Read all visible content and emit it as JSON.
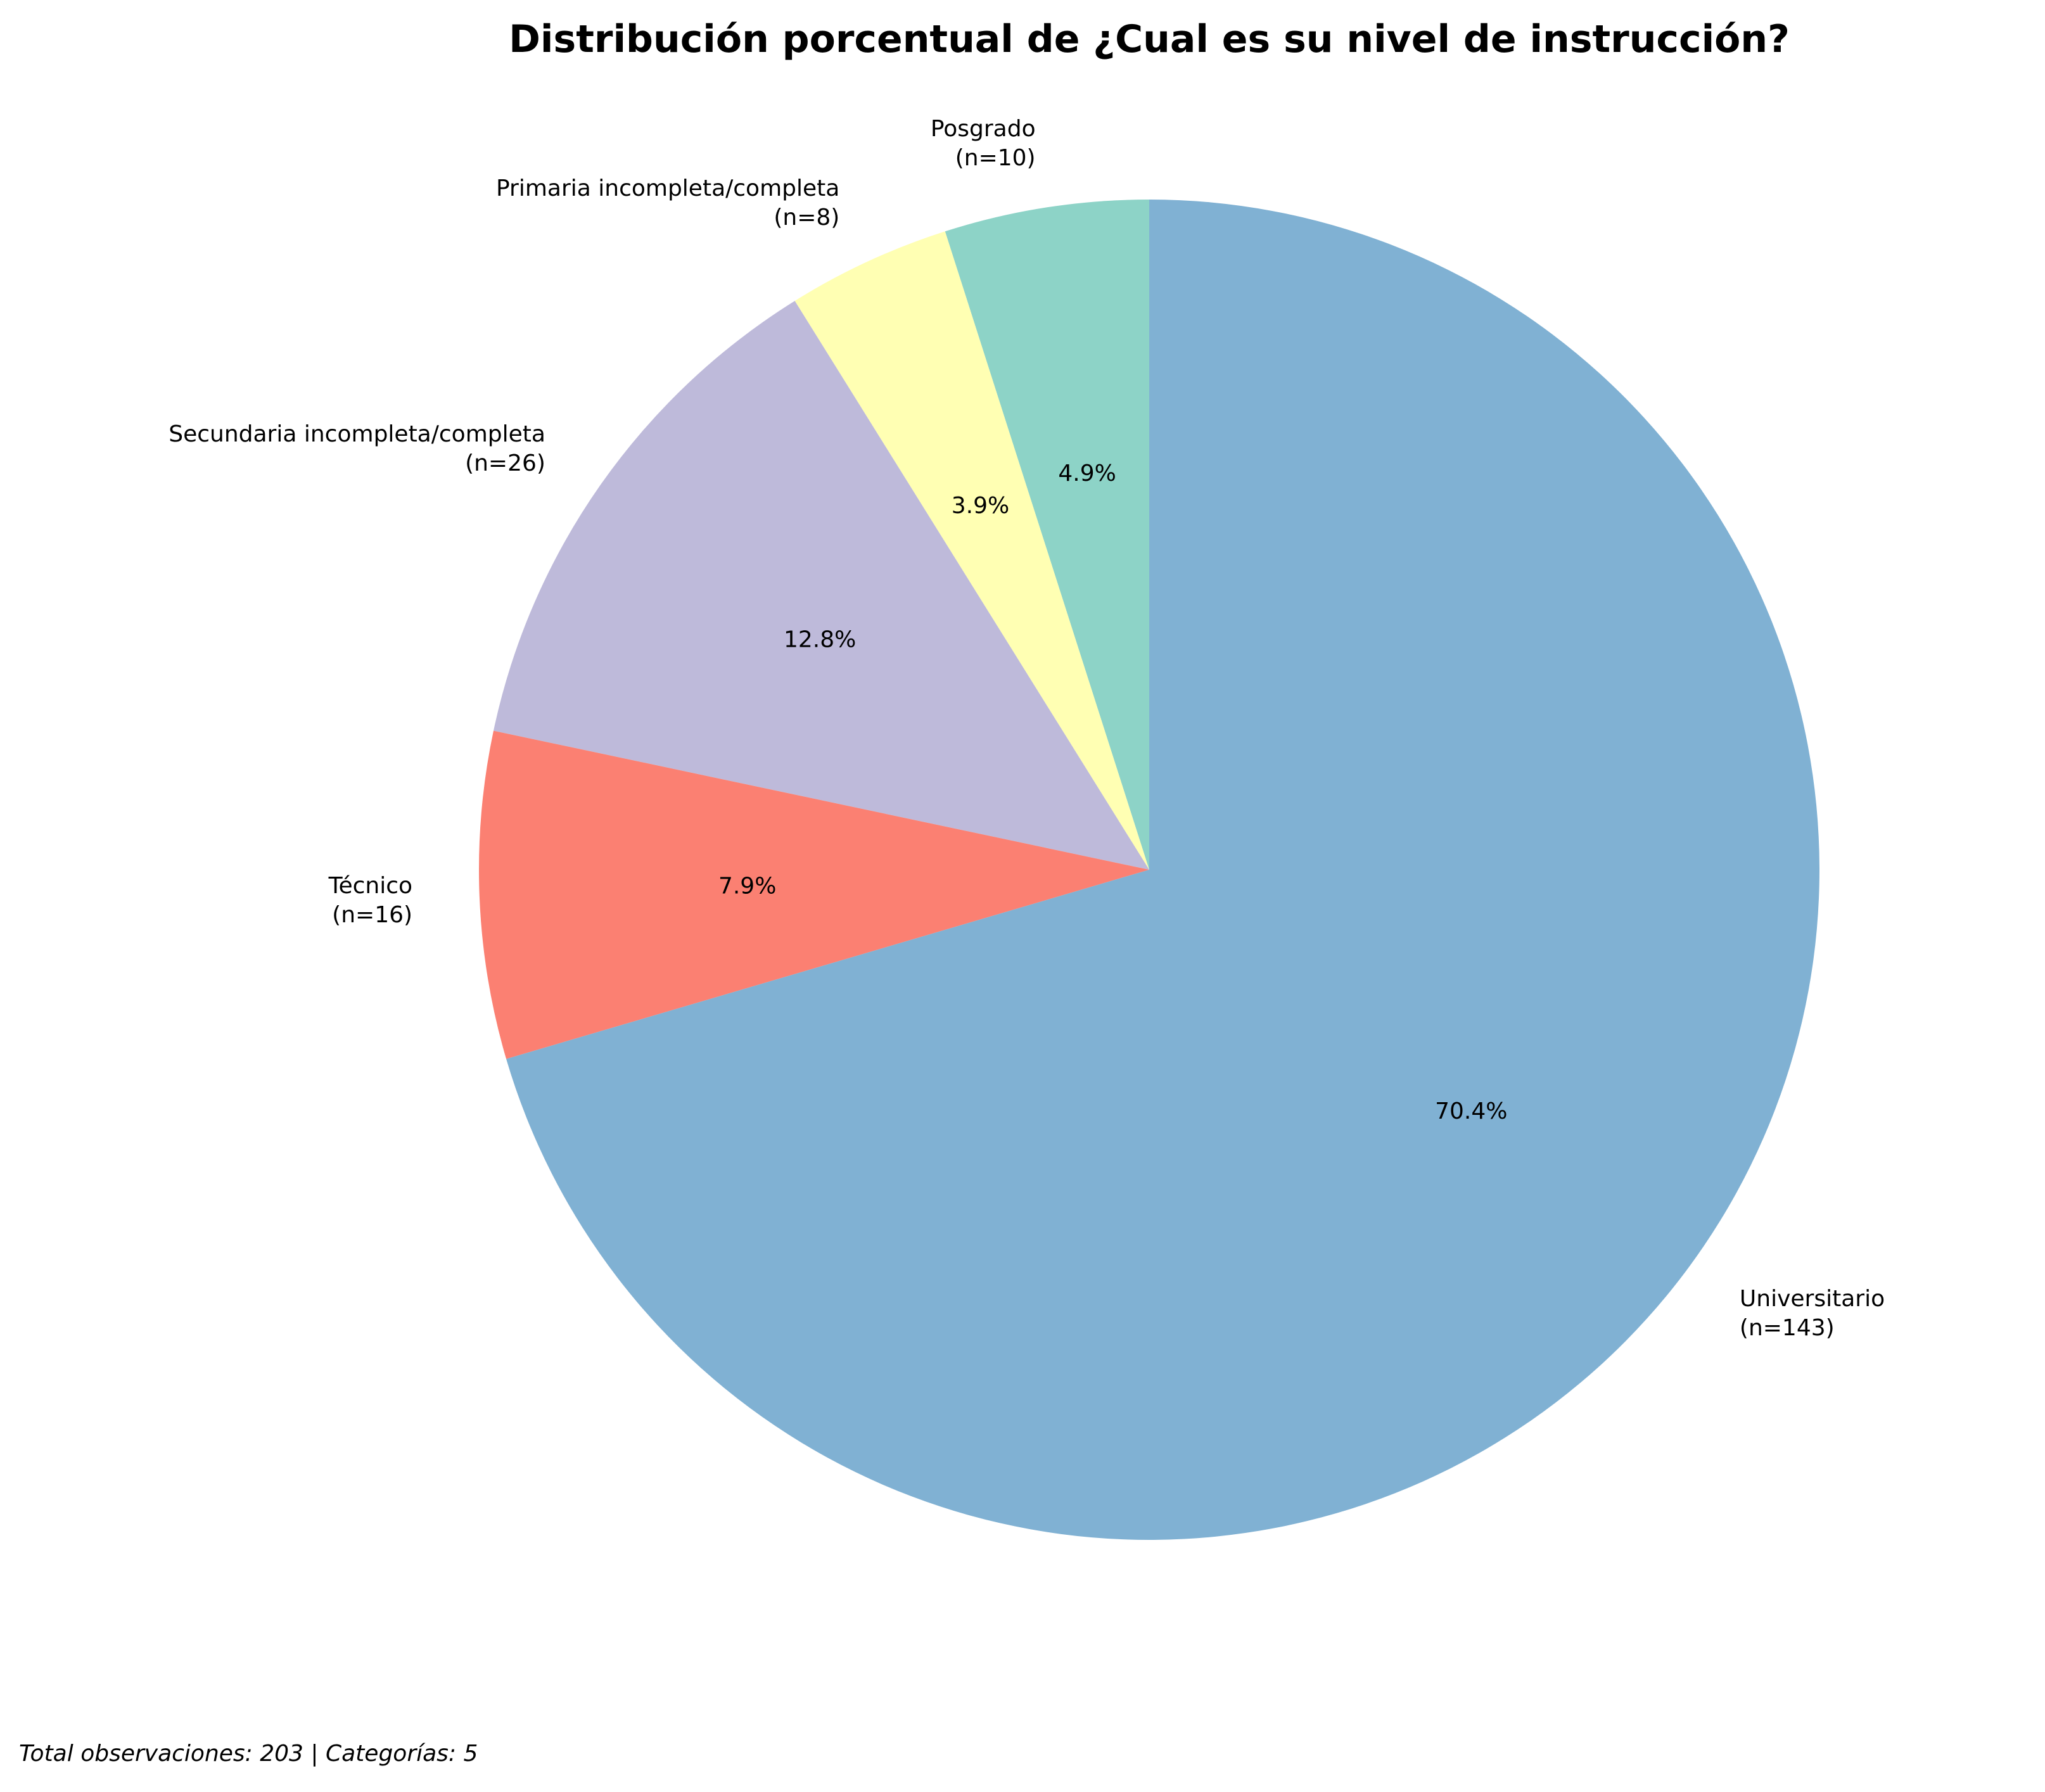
{
  "chart_data": {
    "type": "pie",
    "title": "Distribución porcentual de ¿Cual es su nivel de instrucción?",
    "slices": [
      {
        "label": "Posgrado",
        "count_label": "(n=10)",
        "value": 10,
        "pct_label": "4.9%",
        "color": "#8dd3c7"
      },
      {
        "label": "Primaria incompleta/completa",
        "count_label": "(n=8)",
        "value": 8,
        "pct_label": "3.9%",
        "color": "#ffffb3"
      },
      {
        "label": "Secundaria incompleta/completa",
        "count_label": "(n=26)",
        "value": 26,
        "pct_label": "12.8%",
        "color": "#bebada"
      },
      {
        "label": "Técnico",
        "count_label": "(n=16)",
        "value": 16,
        "pct_label": "7.9%",
        "color": "#fb8072"
      },
      {
        "label": "Universitario",
        "count_label": "(n=143)",
        "value": 143,
        "pct_label": "70.4%",
        "color": "#80b1d3"
      }
    ],
    "start_angle_deg": 90,
    "direction": "counterclockwise"
  },
  "footer": {
    "text": "Total observaciones: 203 | Categorías: 5"
  }
}
